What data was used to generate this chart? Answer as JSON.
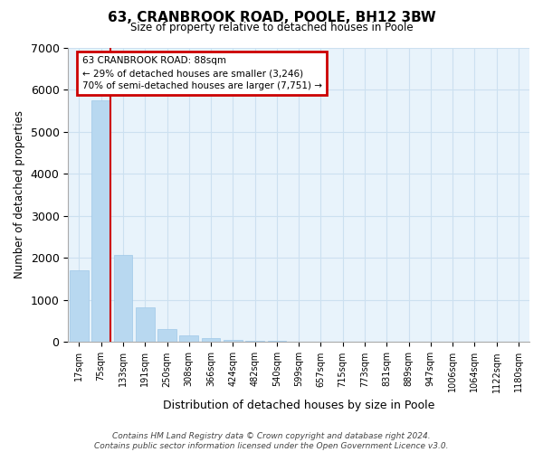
{
  "title": "63, CRANBROOK ROAD, POOLE, BH12 3BW",
  "subtitle": "Size of property relative to detached houses in Poole",
  "xlabel": "Distribution of detached houses by size in Poole",
  "ylabel": "Number of detached properties",
  "categories": [
    "17sqm",
    "75sqm",
    "133sqm",
    "191sqm",
    "250sqm",
    "308sqm",
    "366sqm",
    "424sqm",
    "482sqm",
    "540sqm",
    "599sqm",
    "657sqm",
    "715sqm",
    "773sqm",
    "831sqm",
    "889sqm",
    "947sqm",
    "1006sqm",
    "1064sqm",
    "1122sqm",
    "1180sqm"
  ],
  "values": [
    1700,
    5750,
    2080,
    820,
    310,
    160,
    85,
    55,
    35,
    25,
    18,
    13,
    10,
    8,
    7,
    5,
    4,
    3,
    2,
    2,
    1
  ],
  "bar_color": "#b8d8f0",
  "bar_edge_color": "#9fc8e8",
  "marker_line_color": "#cc0000",
  "annotation_text": "63 CRANBROOK ROAD: 88sqm\n← 29% of detached houses are smaller (3,246)\n70% of semi-detached houses are larger (7,751) →",
  "annotation_box_color": "#cc0000",
  "ylim": [
    0,
    7000
  ],
  "yticks": [
    0,
    1000,
    2000,
    3000,
    4000,
    5000,
    6000,
    7000
  ],
  "grid_color": "#cce0f0",
  "background_color": "#e8f3fb",
  "footer": "Contains HM Land Registry data © Crown copyright and database right 2024.\nContains public sector information licensed under the Open Government Licence v3.0."
}
